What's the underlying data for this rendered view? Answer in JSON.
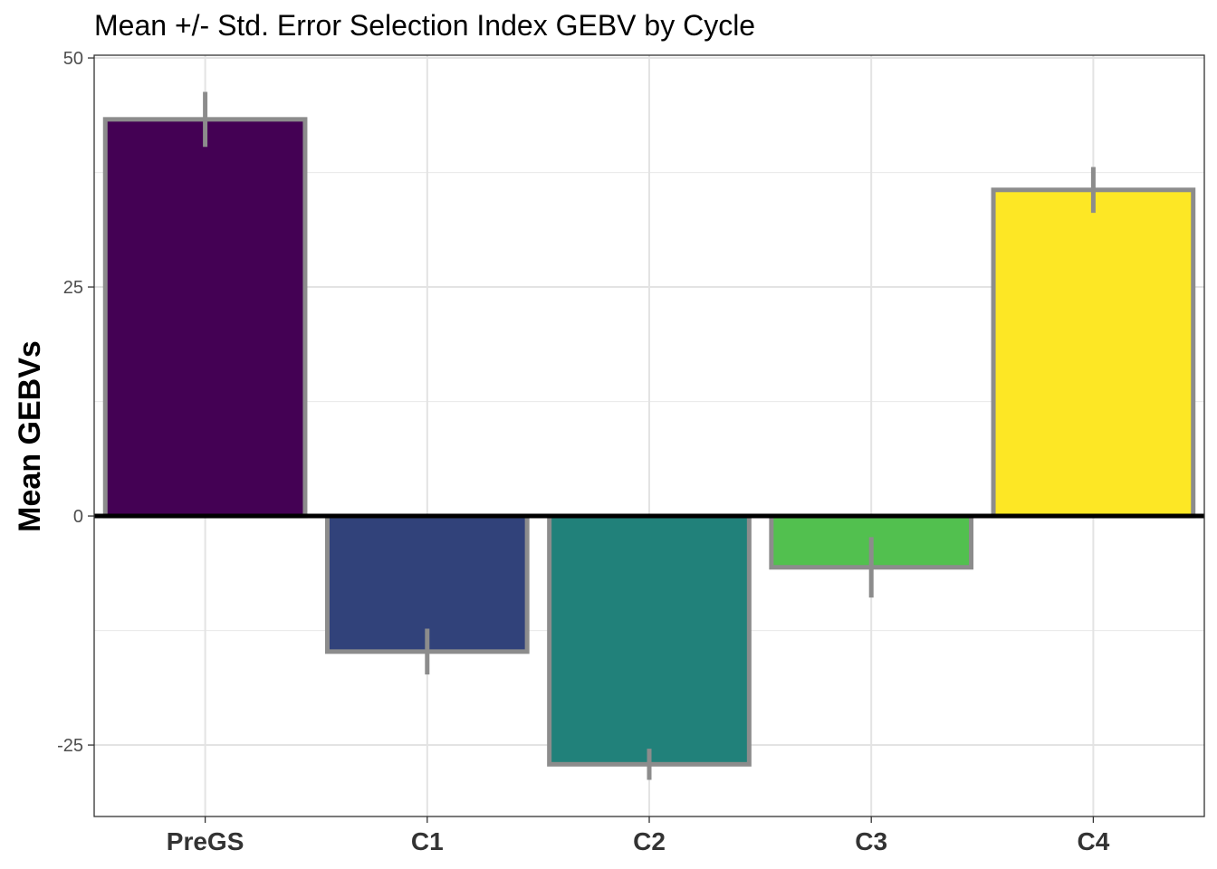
{
  "chart_data": {
    "type": "bar",
    "title": "Mean +/- Std. Error Selection Index GEBV by Cycle",
    "xlabel": "",
    "ylabel": "Mean GEBVs",
    "categories": [
      "PreGS",
      "C1",
      "C2",
      "C3",
      "C4"
    ],
    "values": [
      43.3,
      -14.8,
      -27.1,
      -5.6,
      35.6
    ],
    "errors": [
      3.0,
      2.5,
      1.7,
      3.3,
      2.5
    ],
    "colors": [
      "#440154",
      "#31427a",
      "#21817a",
      "#52c04f",
      "#fde725"
    ],
    "bar_outline_color": "#8c8c8c",
    "errorbar_color": "#8c8c8c",
    "ylim": [
      -32.8,
      50.3
    ],
    "yticks": [
      -25,
      0,
      25,
      50
    ],
    "ytick_labels": [
      "-25",
      "0",
      "25",
      "50"
    ],
    "zero_line": true,
    "grid": true,
    "legend": "none"
  }
}
